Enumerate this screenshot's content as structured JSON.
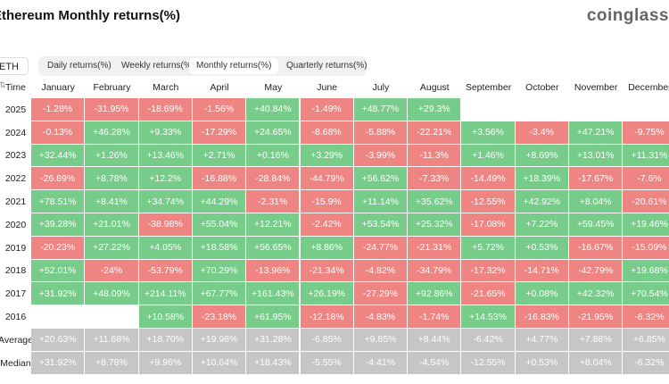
{
  "header": {
    "title": "Ethereum Monthly returns(%)",
    "logo": "coinglass"
  },
  "controls": {
    "asset": "ETH",
    "tabs": [
      "Daily returns(%)",
      "Weekly returns(%)",
      "Monthly returns(%)",
      "Quarterly returns(%)"
    ],
    "active_tab": 2
  },
  "table": {
    "columns": [
      "Time",
      "January",
      "February",
      "March",
      "April",
      "May",
      "June",
      "July",
      "August",
      "September",
      "October",
      "November",
      "December"
    ],
    "rows": [
      [
        "2025",
        "-1.28%",
        "-31.95%",
        "-18.69%",
        "-1.56%",
        "+40.84%",
        "-1.49%",
        "+48.77%",
        "+29.3%",
        null,
        null,
        null,
        null
      ],
      [
        "2024",
        "-0.13%",
        "+46.28%",
        "+9.33%",
        "-17.29%",
        "+24.65%",
        "-8.68%",
        "-5.88%",
        "-22.21%",
        "+3.56%",
        "-3.4%",
        "+47.21%",
        "-9.75%"
      ],
      [
        "2023",
        "+32.44%",
        "+1.26%",
        "+13.46%",
        "+2.71%",
        "+0.16%",
        "+3.29%",
        "-3.99%",
        "-11.3%",
        "+1.46%",
        "+8.69%",
        "+13.01%",
        "+11.31%"
      ],
      [
        "2022",
        "-26.89%",
        "+8.78%",
        "+12.2%",
        "-16.88%",
        "-28.84%",
        "-44.79%",
        "+56.62%",
        "-7.33%",
        "-14.49%",
        "+18.39%",
        "-17.67%",
        "-7.6%"
      ],
      [
        "2021",
        "+78.51%",
        "+8.41%",
        "+34.74%",
        "+44.29%",
        "-2.31%",
        "-15.9%",
        "+11.14%",
        "+35.62%",
        "-12.55%",
        "+42.92%",
        "+8.04%",
        "-20.61%"
      ],
      [
        "2020",
        "+39.28%",
        "+21.01%",
        "-38.98%",
        "+55.04%",
        "+12.21%",
        "-2.42%",
        "+53.54%",
        "+25.32%",
        "-17.08%",
        "+7.22%",
        "+59.45%",
        "+19.46%"
      ],
      [
        "2019",
        "-20.23%",
        "+27.22%",
        "+4.05%",
        "+18.58%",
        "+56.65%",
        "+8.86%",
        "-24.77%",
        "-21.31%",
        "+5.72%",
        "+0.53%",
        "-16.67%",
        "-15.09%"
      ],
      [
        "2018",
        "+52.01%",
        "-24%",
        "-53.79%",
        "+70.29%",
        "-13.96%",
        "-21.34%",
        "-4.82%",
        "-34.79%",
        "-17.32%",
        "-14.71%",
        "-42.79%",
        "+19.68%"
      ],
      [
        "2017",
        "+31.92%",
        "+48.09%",
        "+214.11%",
        "+67.77%",
        "+161.43%",
        "+26.19%",
        "-27.29%",
        "+92.86%",
        "-21.65%",
        "+0.08%",
        "+42.32%",
        "+70.54%"
      ],
      [
        "2016",
        null,
        null,
        "+10.58%",
        "-23.18%",
        "+61.95%",
        "-12.18%",
        "-4.83%",
        "-1.74%",
        "+14.53%",
        "-16.83%",
        "-21.95%",
        "-6.32%"
      ]
    ],
    "summary_rows": [
      [
        "Average",
        "+20.63%",
        "+11.68%",
        "+18.70%",
        "+19.98%",
        "+31.28%",
        "-6.85%",
        "+9.85%",
        "+8.44%",
        "-6.42%",
        "+4.77%",
        "+7.88%",
        "+6.85%"
      ],
      [
        "Median",
        "+31.92%",
        "+8.78%",
        "+9.96%",
        "+10.64%",
        "+18.43%",
        "-5.55%",
        "-4.41%",
        "-4.54%",
        "-12.55%",
        "+0.53%",
        "+8.04%",
        "-6.32%"
      ]
    ]
  }
}
